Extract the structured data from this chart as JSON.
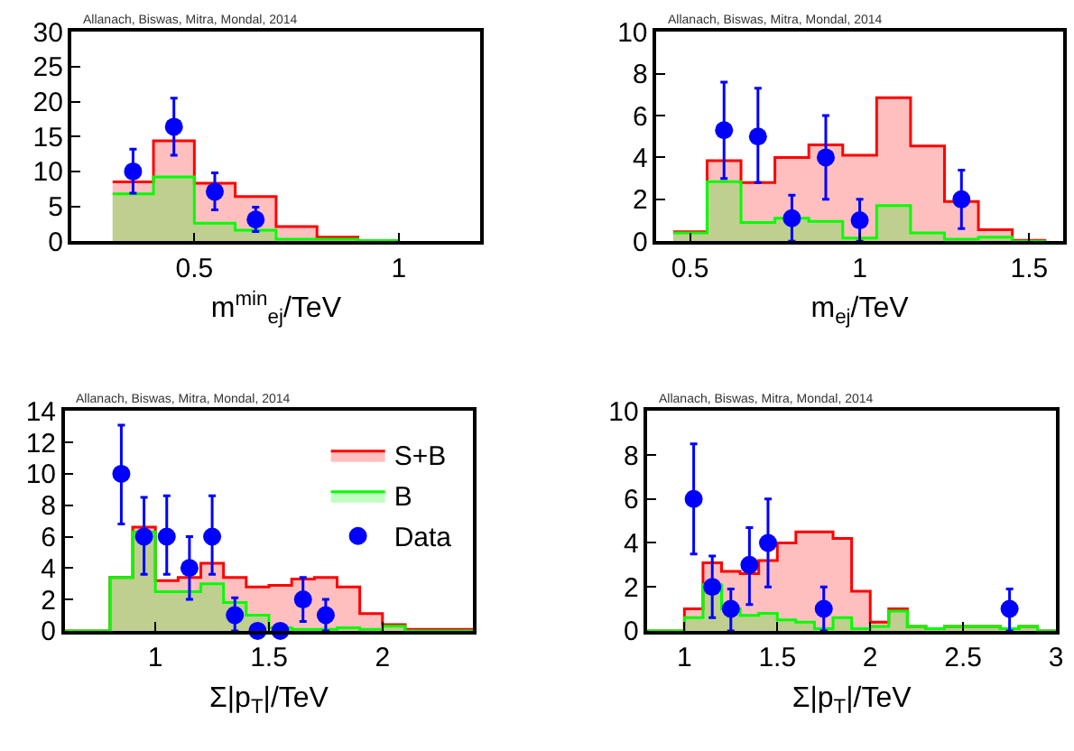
{
  "chart_data": [
    {
      "type": "histogram",
      "xlabel": "m$^{min}$$_{ej}$/TeV",
      "annotations": [
        "Allanach, Biswas, Mitra, Mondal, 2014"
      ],
      "xlim": [
        0.2,
        1.2
      ],
      "xticks": [
        0.5,
        1
      ],
      "ylim": [
        0,
        30
      ],
      "yticks": [
        0,
        5,
        10,
        15,
        20,
        25,
        30
      ],
      "bins": [
        0.3,
        0.4,
        0.5,
        0.6,
        0.7,
        0.8,
        0.9,
        1.0
      ],
      "series": [
        {
          "color": "#ff0000",
          "values": [
            8.5,
            14.4,
            8.3,
            6.4,
            2.1,
            0.6,
            0.1
          ]
        },
        {
          "color": "#00ff00",
          "values": [
            6.8,
            9.2,
            2.6,
            1.6,
            0.3,
            0.3,
            0.1
          ]
        },
        {
          "type": "scatter",
          "color": "#0000ff",
          "marker": "circle",
          "x": [
            0.35,
            0.45,
            0.55,
            0.65
          ],
          "values": [
            10,
            16.4,
            7.1,
            3.1
          ],
          "errors": [
            [
              6.9,
              13.2
            ],
            [
              12.3,
              20.5
            ],
            [
              4.5,
              9.8
            ],
            [
              1.4,
              4.9
            ]
          ]
        }
      ]
    },
    {
      "type": "histogram",
      "xlabel": "m$_{ej}$/TeV",
      "annotations": [
        "Allanach, Biswas, Mitra, Mondal, 2014"
      ],
      "xlim": [
        0.4,
        1.6
      ],
      "xticks": [
        0.5,
        1,
        1.5
      ],
      "ylim": [
        0,
        10
      ],
      "yticks": [
        0,
        2,
        4,
        6,
        8,
        10
      ],
      "bins": [
        0.45,
        0.55,
        0.65,
        0.75,
        0.85,
        0.95,
        1.05,
        1.15,
        1.25,
        1.35,
        1.45,
        1.55
      ],
      "series": [
        {
          "color": "#ff0000",
          "values": [
            0.45,
            3.85,
            2.8,
            4.0,
            4.6,
            4.1,
            6.85,
            4.55,
            1.9,
            0.55,
            0.05
          ]
        },
        {
          "color": "#00ff00",
          "values": [
            0.4,
            2.85,
            0.9,
            1.1,
            0.95,
            0.15,
            1.7,
            0.4,
            0.1,
            0.2,
            0.0
          ]
        },
        {
          "type": "scatter",
          "color": "#0000ff",
          "marker": "circle",
          "x": [
            0.6,
            0.7,
            0.8,
            0.9,
            1.0,
            1.3
          ],
          "values": [
            5.3,
            5.0,
            1.1,
            4.0,
            1.0,
            2.0
          ],
          "errors": [
            [
              3.0,
              7.6
            ],
            [
              2.8,
              7.3
            ],
            [
              0,
              2.2
            ],
            [
              2.0,
              6.0
            ],
            [
              0,
              2.0
            ],
            [
              0.6,
              3.4
            ]
          ]
        }
      ]
    },
    {
      "type": "histogram",
      "xlabel": "Σ|p$_{T}$|/TeV",
      "annotations": [
        "Allanach, Biswas, Mitra, Mondal, 2014"
      ],
      "xlim": [
        0.6,
        2.4
      ],
      "xticks": [
        1,
        1.5,
        2
      ],
      "ylim": [
        0,
        14
      ],
      "yticks": [
        0,
        2,
        4,
        6,
        8,
        10,
        12,
        14
      ],
      "legend": "top right",
      "bins": [
        0.6,
        0.7,
        0.8,
        0.9,
        1.0,
        1.1,
        1.2,
        1.3,
        1.4,
        1.5,
        1.6,
        1.7,
        1.8,
        1.9,
        2.0,
        2.1,
        2.2,
        2.3,
        2.4
      ],
      "series": [
        {
          "name": "S+B",
          "color": "#ff0000",
          "values": [
            0,
            0,
            3.4,
            6.6,
            3.2,
            3.4,
            4.3,
            3.4,
            2.8,
            2.9,
            3.3,
            3.4,
            2.8,
            1.1,
            0.4,
            0.1,
            0.1,
            0.1
          ]
        },
        {
          "name": "B",
          "color": "#00ff00",
          "values": [
            0,
            0,
            3.4,
            6.3,
            2.5,
            2.5,
            3.0,
            1.8,
            1.0,
            0.2,
            0.1,
            0.1,
            0.2,
            0.1,
            0.3,
            0,
            0,
            0
          ]
        },
        {
          "type": "scatter",
          "name": "Data",
          "color": "#0000ff",
          "marker": "circle",
          "x": [
            0.85,
            0.95,
            1.05,
            1.15,
            1.25,
            1.35,
            1.45,
            1.55,
            1.65,
            1.75
          ],
          "values": [
            10,
            6,
            6,
            4,
            6,
            1,
            0,
            0,
            2,
            1
          ],
          "errors": [
            [
              6.8,
              13.1
            ],
            [
              3.6,
              8.5
            ],
            [
              3.6,
              8.6
            ],
            [
              2.0,
              6.0
            ],
            [
              3.6,
              8.6
            ],
            [
              0,
              2.1
            ],
            null,
            null,
            [
              0.6,
              3.4
            ],
            [
              0,
              2.0
            ]
          ]
        }
      ]
    },
    {
      "type": "histogram",
      "xlabel": "Σ|p$_{T}$|/TeV",
      "annotations": [
        "Allanach, Biswas, Mitra, Mondal, 2014"
      ],
      "xlim": [
        0.8,
        3
      ],
      "xticks": [
        1,
        1.5,
        2,
        2.5,
        3
      ],
      "ylim": [
        0,
        10
      ],
      "yticks": [
        0,
        2,
        4,
        6,
        8,
        10
      ],
      "bins": [
        0.8,
        0.9,
        1.0,
        1.1,
        1.2,
        1.3,
        1.4,
        1.5,
        1.6,
        1.7,
        1.8,
        1.9,
        2.0,
        2.1,
        2.2,
        2.3,
        2.4,
        2.5,
        2.6,
        2.7,
        2.8,
        2.9,
        3.0
      ],
      "series": [
        {
          "color": "#ff0000",
          "values": [
            0,
            0,
            1.0,
            3.1,
            2.7,
            2.6,
            3.2,
            4.0,
            4.5,
            4.5,
            4.2,
            1.8,
            0.4,
            1.0,
            0.2,
            0.1,
            0.2,
            0.2,
            0.2,
            0.1,
            0.2,
            0
          ]
        },
        {
          "color": "#00ff00",
          "values": [
            0,
            0,
            0.6,
            2.1,
            1.0,
            0.7,
            0.8,
            0.5,
            0.4,
            0.1,
            0.6,
            0.1,
            0.2,
            0.9,
            0.2,
            0.1,
            0.2,
            0.2,
            0.2,
            0.1,
            0.2,
            0
          ]
        },
        {
          "type": "scatter",
          "color": "#0000ff",
          "marker": "circle",
          "x": [
            1.05,
            1.15,
            1.25,
            1.35,
            1.45,
            1.75,
            2.75
          ],
          "values": [
            6,
            2,
            1,
            3,
            4,
            1,
            1
          ],
          "errors": [
            [
              3.5,
              8.5
            ],
            [
              0.6,
              3.4
            ],
            [
              0,
              1.9
            ],
            [
              1.2,
              4.7
            ],
            [
              2.0,
              6.0
            ],
            [
              0,
              2.0
            ],
            [
              0,
              1.9
            ]
          ]
        }
      ]
    }
  ]
}
